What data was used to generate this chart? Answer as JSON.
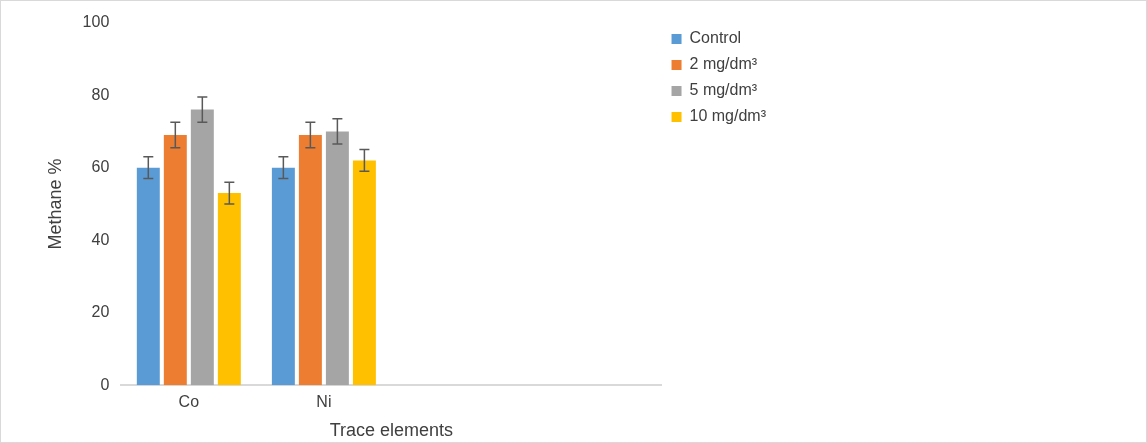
{
  "chart_data": {
    "type": "bar",
    "xlabel": "Trace elements",
    "ylabel": "Methane %",
    "categories": [
      "Co",
      "Ni",
      null,
      null
    ],
    "series": [
      {
        "name": "Control",
        "color": "#5b9bd5",
        "values": [
          60,
          60,
          null,
          null
        ],
        "errors": [
          3,
          3,
          null,
          null
        ]
      },
      {
        "name": "2 mg/dm³",
        "color": "#ed7d31",
        "values": [
          69,
          69,
          null,
          null
        ],
        "errors": [
          3.5,
          3.5,
          null,
          null
        ]
      },
      {
        "name": "5 mg/dm³",
        "color": "#a5a5a5",
        "values": [
          76,
          70,
          null,
          null
        ],
        "errors": [
          3.5,
          3.5,
          null,
          null
        ]
      },
      {
        "name": "10 mg/dm³",
        "color": "#ffc000",
        "values": [
          53,
          62,
          null,
          null
        ],
        "errors": [
          3,
          3,
          null,
          null
        ]
      }
    ],
    "ylim": [
      0,
      100
    ],
    "yticks": [
      0,
      20,
      40,
      60,
      80,
      100
    ],
    "grid": false,
    "legend": "right"
  }
}
